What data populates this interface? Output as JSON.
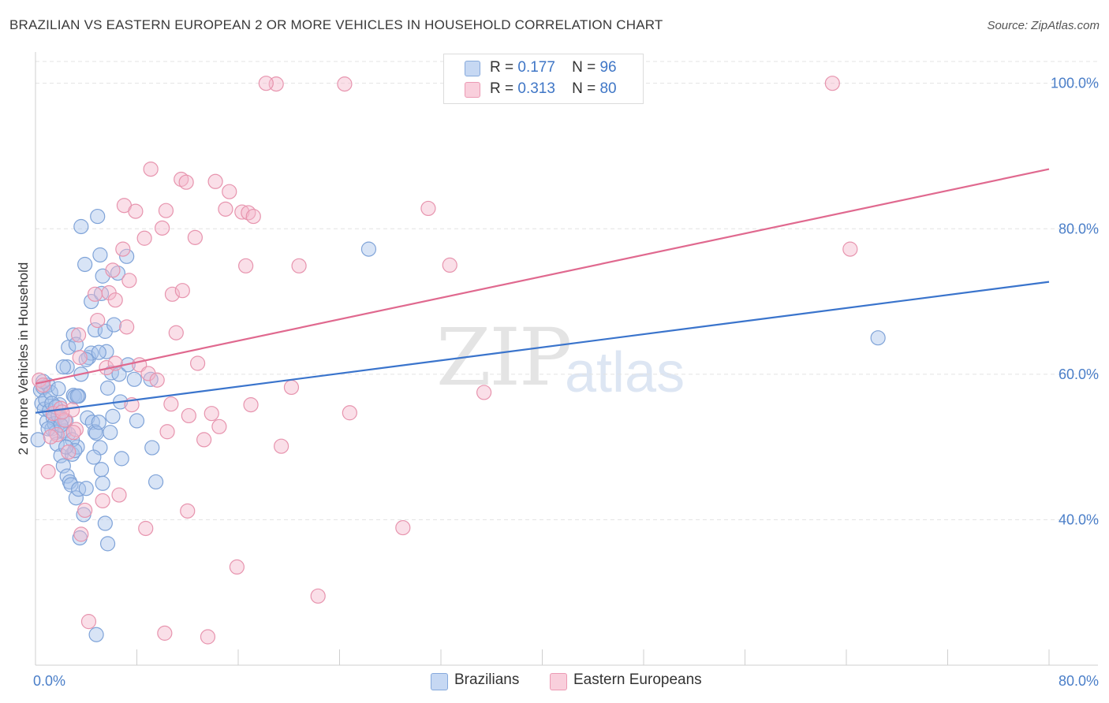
{
  "chart_data": {
    "type": "scatter",
    "title": "BRAZILIAN VS EASTERN EUROPEAN 2 OR MORE VEHICLES IN HOUSEHOLD CORRELATION CHART",
    "source": "Source: ZipAtlas.com",
    "xlabel": "",
    "ylabel": "2 or more Vehicles in Household",
    "xlim": [
      0,
      80
    ],
    "ylim": [
      20,
      103
    ],
    "x_tick_labels": [
      "0.0%",
      "80.0%"
    ],
    "y_ticks": [
      40,
      60,
      80,
      100
    ],
    "y_tick_labels": [
      "40.0%",
      "60.0%",
      "80.0%",
      "100.0%"
    ],
    "colors": {
      "Brazilians": "#a8c4ec",
      "Eastern Europeans": "#f5b8cb",
      "blue_line": "#3a74cc",
      "pink_line": "#e0698f"
    },
    "legend": [
      {
        "name": "Brazilians",
        "r_label": "R =",
        "r": "0.177",
        "n_label": "N =",
        "n": "96"
      },
      {
        "name": "Eastern Europeans",
        "r_label": "R =",
        "r": "0.313",
        "n_label": "N =",
        "n": "80"
      }
    ],
    "series": [
      {
        "name": "Brazilians",
        "trend": {
          "x": [
            0,
            80
          ],
          "y": [
            54.7,
            72.7
          ]
        },
        "points": [
          [
            0.2,
            51
          ],
          [
            0.4,
            57.8
          ],
          [
            0.6,
            58.2
          ],
          [
            0.5,
            56
          ],
          [
            0.7,
            55.2
          ],
          [
            0.8,
            56.5
          ],
          [
            0.9,
            53.5
          ],
          [
            1.0,
            58.5
          ],
          [
            1.1,
            55
          ],
          [
            1.2,
            57.5
          ],
          [
            1.3,
            52.5
          ],
          [
            1.4,
            54
          ],
          [
            1.5,
            53.2
          ],
          [
            1.6,
            52
          ],
          [
            1.7,
            50.4
          ],
          [
            1.8,
            54.3
          ],
          [
            1.9,
            55.8
          ],
          [
            2.0,
            48.8
          ],
          [
            2.1,
            53.8
          ],
          [
            2.2,
            47.4
          ],
          [
            2.3,
            52.2
          ],
          [
            2.4,
            53.6
          ],
          [
            2.5,
            46
          ],
          [
            2.6,
            51.8
          ],
          [
            2.7,
            45.2
          ],
          [
            2.8,
            44.8
          ],
          [
            2.9,
            49
          ],
          [
            3.0,
            57.1
          ],
          [
            3.1,
            56.9
          ],
          [
            3.2,
            43
          ],
          [
            3.3,
            50
          ],
          [
            3.4,
            44.2
          ],
          [
            3.6,
            60
          ],
          [
            3.8,
            40.7
          ],
          [
            4.0,
            44.3
          ],
          [
            4.1,
            54
          ],
          [
            4.2,
            62.3
          ],
          [
            4.4,
            62.9
          ],
          [
            4.5,
            53.4
          ],
          [
            4.7,
            52.1
          ],
          [
            4.8,
            51.9
          ],
          [
            5.0,
            53.4
          ],
          [
            5.1,
            49.9
          ],
          [
            5.2,
            46.9
          ],
          [
            5.3,
            45
          ],
          [
            5.5,
            39.5
          ],
          [
            5.7,
            36.7
          ],
          [
            6.0,
            60.2
          ],
          [
            6.1,
            54.2
          ],
          [
            6.5,
            73.9
          ],
          [
            6.6,
            60
          ],
          [
            6.7,
            56.2
          ],
          [
            6.8,
            48.4
          ],
          [
            7.2,
            76.2
          ],
          [
            7.3,
            61.3
          ],
          [
            7.8,
            59.3
          ],
          [
            8.0,
            53.6
          ],
          [
            9.1,
            59.3
          ],
          [
            9.2,
            49.9
          ],
          [
            9.5,
            45.2
          ],
          [
            2.6,
            63.7
          ],
          [
            2.5,
            61
          ],
          [
            3.0,
            65.4
          ],
          [
            3.2,
            64.1
          ],
          [
            3.6,
            80.3
          ],
          [
            3.9,
            75.1
          ],
          [
            4.4,
            70
          ],
          [
            4.7,
            66.1
          ],
          [
            4.9,
            81.7
          ],
          [
            5.1,
            76.4
          ],
          [
            5.3,
            73.5
          ],
          [
            5.2,
            71.1
          ],
          [
            5.5,
            65.9
          ],
          [
            5.6,
            63.1
          ],
          [
            5.7,
            58.1
          ],
          [
            3.4,
            57
          ],
          [
            1.8,
            58
          ],
          [
            2.2,
            61
          ],
          [
            0.6,
            59
          ],
          [
            1.3,
            56
          ],
          [
            2.0,
            53
          ],
          [
            2.9,
            51
          ],
          [
            3.1,
            49.5
          ],
          [
            3.5,
            37.5
          ],
          [
            4.8,
            24.2
          ],
          [
            6.2,
            66.8
          ],
          [
            26.3,
            77.2
          ],
          [
            66.5,
            65
          ],
          [
            5.0,
            63
          ],
          [
            1.0,
            52.5
          ],
          [
            1.6,
            55.5
          ],
          [
            2.4,
            50
          ],
          [
            3.3,
            57
          ],
          [
            4.0,
            62
          ],
          [
            4.6,
            48.6
          ],
          [
            5.9,
            52
          ]
        ]
      },
      {
        "name": "Eastern Europeans",
        "trend": {
          "x": [
            0,
            80
          ],
          "y": [
            58.7,
            88.2
          ]
        },
        "points": [
          [
            0.3,
            59.2
          ],
          [
            0.6,
            58.5
          ],
          [
            1.0,
            46.6
          ],
          [
            1.4,
            54.6
          ],
          [
            1.7,
            51.7
          ],
          [
            2.0,
            55.3
          ],
          [
            2.3,
            53.7
          ],
          [
            2.6,
            49.3
          ],
          [
            2.9,
            55.1
          ],
          [
            3.2,
            52.4
          ],
          [
            3.4,
            65.4
          ],
          [
            3.5,
            62.3
          ],
          [
            3.6,
            38
          ],
          [
            3.9,
            41.3
          ],
          [
            4.2,
            26
          ],
          [
            4.7,
            71
          ],
          [
            4.9,
            67.4
          ],
          [
            5.3,
            42.6
          ],
          [
            5.6,
            60.9
          ],
          [
            5.8,
            71.2
          ],
          [
            6.1,
            74.3
          ],
          [
            6.3,
            70.2
          ],
          [
            6.6,
            43.4
          ],
          [
            6.9,
            77.2
          ],
          [
            7.0,
            83.2
          ],
          [
            7.2,
            66.5
          ],
          [
            7.4,
            72.9
          ],
          [
            7.6,
            55.8
          ],
          [
            7.9,
            82.4
          ],
          [
            8.2,
            61.3
          ],
          [
            8.6,
            78.7
          ],
          [
            8.9,
            60.1
          ],
          [
            9.1,
            88.2
          ],
          [
            9.6,
            59.2
          ],
          [
            10.0,
            80.1
          ],
          [
            10.2,
            24.4
          ],
          [
            10.3,
            82.5
          ],
          [
            10.4,
            52.1
          ],
          [
            10.8,
            71
          ],
          [
            11.1,
            65.7
          ],
          [
            11.5,
            86.8
          ],
          [
            11.6,
            71.5
          ],
          [
            11.9,
            86.4
          ],
          [
            12.0,
            41.2
          ],
          [
            12.1,
            54.3
          ],
          [
            12.6,
            78.8
          ],
          [
            12.8,
            61.5
          ],
          [
            13.3,
            51
          ],
          [
            13.6,
            23.9
          ],
          [
            13.9,
            54.6
          ],
          [
            14.2,
            86.5
          ],
          [
            15.0,
            82.7
          ],
          [
            15.3,
            85.1
          ],
          [
            16.3,
            82.3
          ],
          [
            16.6,
            74.9
          ],
          [
            16.8,
            82.2
          ],
          [
            17.0,
            55.8
          ],
          [
            17.2,
            81.7
          ],
          [
            19.0,
            99.9
          ],
          [
            19.4,
            50.1
          ],
          [
            20.8,
            74.9
          ],
          [
            22.3,
            29.5
          ],
          [
            24.8,
            54.7
          ],
          [
            24.4,
            99.9
          ],
          [
            29.0,
            38.9
          ],
          [
            31.0,
            82.8
          ],
          [
            32.7,
            75
          ],
          [
            35.4,
            57.5
          ],
          [
            62.9,
            100
          ],
          [
            64.3,
            77.2
          ],
          [
            10.7,
            55.9
          ],
          [
            6.3,
            61.5
          ],
          [
            3.0,
            52
          ],
          [
            2.1,
            54.8
          ],
          [
            1.2,
            51.4
          ],
          [
            18.2,
            100
          ],
          [
            15.9,
            33.5
          ],
          [
            8.7,
            38.8
          ],
          [
            14.5,
            52.8
          ],
          [
            20.2,
            58.2
          ]
        ]
      }
    ]
  },
  "watermark": {
    "zip": "ZIP",
    "atlas": "atlas"
  }
}
